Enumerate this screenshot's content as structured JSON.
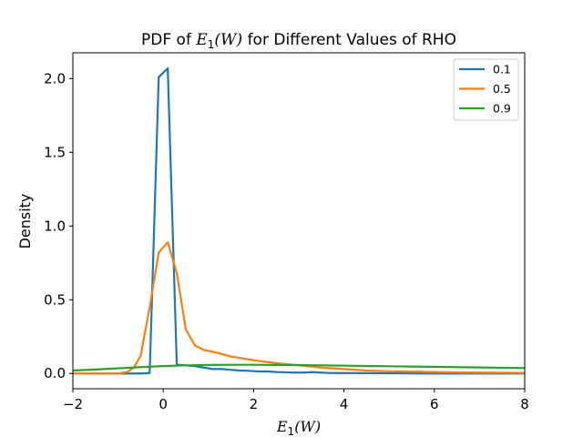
{
  "chart_data": {
    "type": "line",
    "title": {
      "prefix": "PDF of ",
      "math_E": "E",
      "math_sub": "1",
      "math_arg": "(W)",
      "suffix": " for Different Values of RHO"
    },
    "xlabel": {
      "math_E": "E",
      "math_sub": "1",
      "math_arg": "(W)"
    },
    "ylabel": "Density",
    "xlim": [
      -2,
      8
    ],
    "ylim": [
      -0.1035,
      2.175
    ],
    "xticks": [
      -2,
      0,
      2,
      4,
      6,
      8
    ],
    "xtick_labels": [
      "−2",
      "0",
      "2",
      "4",
      "6",
      "8"
    ],
    "yticks": [
      0.0,
      0.5,
      1.0,
      1.5,
      2.0
    ],
    "ytick_labels": [
      "0.0",
      "0.5",
      "1.0",
      "1.5",
      "2.0"
    ],
    "legend_position": "top-right",
    "grid": false,
    "series": [
      {
        "name": "0.1",
        "color": "#1f77b4",
        "x": [
          -2,
          -1.8,
          -1.5,
          -1.2,
          -1.0,
          -0.8,
          -0.5,
          -0.3,
          -0.1,
          0.1,
          0.3,
          0.5,
          0.7,
          0.9,
          1.1,
          1.3,
          1.5,
          1.7,
          1.9,
          2.1,
          2.3,
          2.5,
          2.7,
          2.9,
          3.1,
          3.3,
          3.5,
          3.7,
          4.0,
          4.5,
          5.0,
          6.0,
          7.0,
          8.0
        ],
        "y": [
          0.0,
          0.0,
          0.0,
          0.0,
          0.0,
          0.0,
          0.0,
          0.003,
          2.01,
          2.07,
          0.06,
          0.055,
          0.05,
          0.04,
          0.03,
          0.03,
          0.025,
          0.02,
          0.018,
          0.014,
          0.014,
          0.01,
          0.008,
          0.006,
          0.006,
          0.009,
          0.006,
          0.003,
          0.003,
          0.002,
          0.001,
          0.0,
          0.0,
          0.0
        ]
      },
      {
        "name": "0.5",
        "color": "#ff7f0e",
        "x": [
          -2,
          -1.5,
          -1.0,
          -0.8,
          -0.65,
          -0.5,
          -0.3,
          -0.1,
          0.1,
          0.3,
          0.5,
          0.7,
          0.9,
          1.2,
          1.5,
          2.0,
          2.5,
          3.0,
          3.5,
          4.0,
          4.5,
          5.0,
          6.0,
          7.0,
          8.0
        ],
        "y": [
          0.0,
          0.0,
          0.0,
          0.01,
          0.04,
          0.12,
          0.45,
          0.82,
          0.89,
          0.68,
          0.3,
          0.19,
          0.16,
          0.14,
          0.115,
          0.09,
          0.07,
          0.055,
          0.04,
          0.03,
          0.02,
          0.015,
          0.01,
          0.006,
          0.004
        ]
      },
      {
        "name": "0.9",
        "color": "#2ca02c",
        "x": [
          -2,
          -1.5,
          -1.0,
          -0.5,
          0.0,
          0.5,
          1.0,
          1.5,
          2.0,
          2.5,
          3.0,
          3.5,
          4.0,
          4.5,
          5.0,
          5.5,
          6.0,
          6.5,
          7.0,
          7.5,
          8.0
        ],
        "y": [
          0.02,
          0.027,
          0.035,
          0.043,
          0.05,
          0.055,
          0.058,
          0.059,
          0.059,
          0.058,
          0.057,
          0.055,
          0.053,
          0.051,
          0.049,
          0.047,
          0.045,
          0.043,
          0.041,
          0.039,
          0.037
        ]
      }
    ]
  }
}
